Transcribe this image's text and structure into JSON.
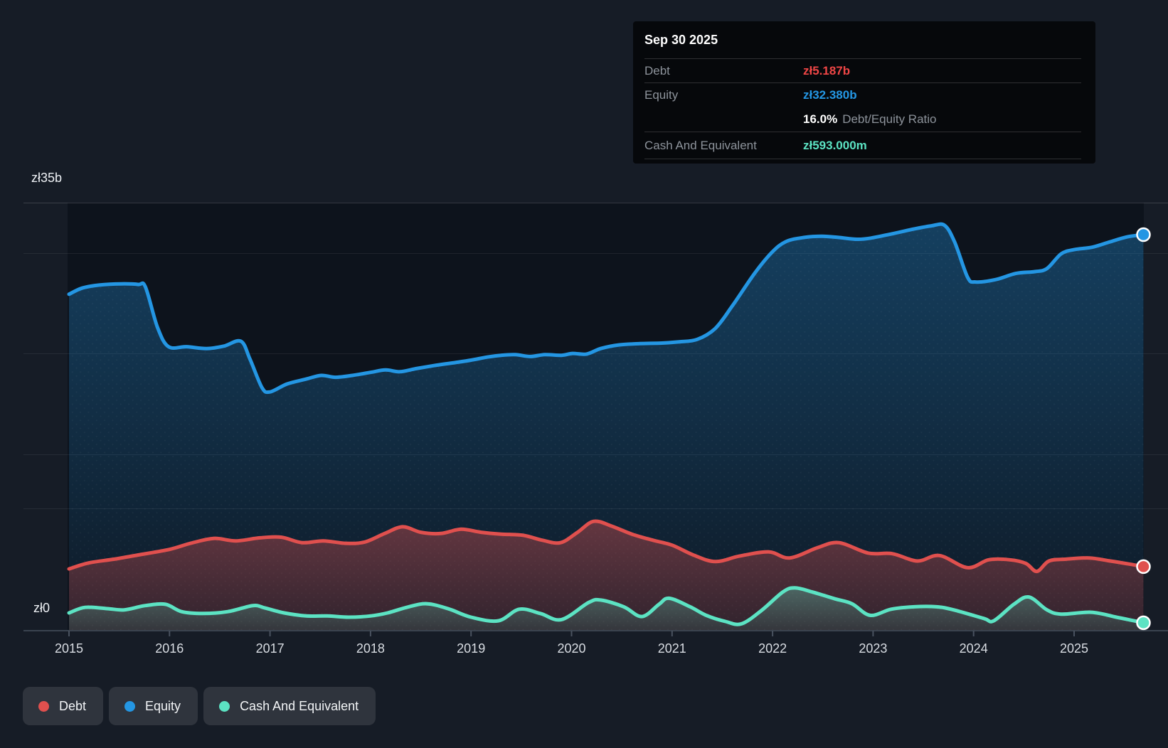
{
  "tooltip": {
    "date": "Sep 30 2025",
    "debt_label": "Debt",
    "debt_value": "zł5.187b",
    "equity_label": "Equity",
    "equity_value": "zł32.380b",
    "ratio_value": "16.0%",
    "ratio_label": "Debt/Equity Ratio",
    "cash_label": "Cash And Equivalent",
    "cash_value": "zł593.000m"
  },
  "axis": {
    "y_max_label": "zł35b",
    "y_zero_label": "zł0",
    "x_ticks": [
      "2015",
      "2016",
      "2017",
      "2018",
      "2019",
      "2020",
      "2021",
      "2022",
      "2023",
      "2024",
      "2025"
    ]
  },
  "legend": {
    "items": [
      {
        "label": "Debt",
        "color": "#e0504e"
      },
      {
        "label": "Equity",
        "color": "#2496e3"
      },
      {
        "label": "Cash And Equivalent",
        "color": "#5ce3c3"
      }
    ]
  },
  "colors": {
    "debt": "#e0504e",
    "equity": "#2496e3",
    "cash": "#5ce3c3",
    "background": "#161c26",
    "plot_background": "#0d131c"
  },
  "chart_data": {
    "type": "area",
    "currency": "zł",
    "value_unit": "billions",
    "ylim": [
      0,
      35
    ],
    "x_range": [
      2015,
      2025.75
    ],
    "gridlines": true,
    "legend_position": "bottom-left",
    "latest": {
      "date": "Sep 30 2025",
      "debt_b": 5.187,
      "equity_b": 32.38,
      "cash_b": 0.593,
      "debt_equity_ratio_pct": 16.0
    },
    "series": [
      {
        "key": "equity",
        "name": "Equity",
        "color": "#2496e3",
        "points": [
          [
            2015.0,
            27.5
          ],
          [
            2015.13,
            28.0
          ],
          [
            2015.3,
            28.25
          ],
          [
            2015.52,
            28.35
          ],
          [
            2015.69,
            28.3
          ],
          [
            2015.76,
            28.1
          ],
          [
            2015.88,
            24.8
          ],
          [
            2015.99,
            23.2
          ],
          [
            2016.17,
            23.2
          ],
          [
            2016.37,
            23.05
          ],
          [
            2016.54,
            23.25
          ],
          [
            2016.71,
            23.65
          ],
          [
            2016.8,
            22.2
          ],
          [
            2016.92,
            19.85
          ],
          [
            2017.0,
            19.5
          ],
          [
            2017.17,
            20.15
          ],
          [
            2017.36,
            20.55
          ],
          [
            2017.51,
            20.85
          ],
          [
            2017.65,
            20.7
          ],
          [
            2017.82,
            20.85
          ],
          [
            2018.0,
            21.1
          ],
          [
            2018.15,
            21.3
          ],
          [
            2018.29,
            21.15
          ],
          [
            2018.45,
            21.4
          ],
          [
            2018.63,
            21.65
          ],
          [
            2018.84,
            21.9
          ],
          [
            2019.0,
            22.1
          ],
          [
            2019.16,
            22.35
          ],
          [
            2019.3,
            22.5
          ],
          [
            2019.44,
            22.55
          ],
          [
            2019.59,
            22.4
          ],
          [
            2019.73,
            22.55
          ],
          [
            2019.9,
            22.5
          ],
          [
            2020.01,
            22.65
          ],
          [
            2020.15,
            22.6
          ],
          [
            2020.29,
            23.05
          ],
          [
            2020.47,
            23.35
          ],
          [
            2020.68,
            23.45
          ],
          [
            2020.9,
            23.5
          ],
          [
            2021.07,
            23.6
          ],
          [
            2021.25,
            23.8
          ],
          [
            2021.43,
            24.7
          ],
          [
            2021.6,
            26.55
          ],
          [
            2021.82,
            29.2
          ],
          [
            2021.99,
            30.9
          ],
          [
            2022.13,
            31.8
          ],
          [
            2022.31,
            32.15
          ],
          [
            2022.49,
            32.25
          ],
          [
            2022.66,
            32.15
          ],
          [
            2022.84,
            32.0
          ],
          [
            2022.98,
            32.1
          ],
          [
            2023.19,
            32.45
          ],
          [
            2023.41,
            32.85
          ],
          [
            2023.58,
            33.1
          ],
          [
            2023.71,
            33.15
          ],
          [
            2023.81,
            31.8
          ],
          [
            2023.94,
            28.9
          ],
          [
            2024.02,
            28.5
          ],
          [
            2024.22,
            28.7
          ],
          [
            2024.42,
            29.2
          ],
          [
            2024.61,
            29.35
          ],
          [
            2024.73,
            29.6
          ],
          [
            2024.87,
            30.8
          ],
          [
            2025.0,
            31.15
          ],
          [
            2025.18,
            31.35
          ],
          [
            2025.36,
            31.8
          ],
          [
            2025.53,
            32.2
          ],
          [
            2025.69,
            32.38
          ]
        ]
      },
      {
        "key": "debt",
        "name": "Debt",
        "color": "#e0504e",
        "points": [
          [
            2015.0,
            5.0
          ],
          [
            2015.2,
            5.5
          ],
          [
            2015.45,
            5.8
          ],
          [
            2015.73,
            6.2
          ],
          [
            2016.0,
            6.6
          ],
          [
            2016.21,
            7.1
          ],
          [
            2016.44,
            7.5
          ],
          [
            2016.66,
            7.3
          ],
          [
            2016.9,
            7.55
          ],
          [
            2017.11,
            7.6
          ],
          [
            2017.32,
            7.15
          ],
          [
            2017.53,
            7.3
          ],
          [
            2017.75,
            7.1
          ],
          [
            2017.94,
            7.2
          ],
          [
            2018.14,
            7.9
          ],
          [
            2018.32,
            8.45
          ],
          [
            2018.5,
            8.0
          ],
          [
            2018.7,
            7.9
          ],
          [
            2018.9,
            8.25
          ],
          [
            2019.1,
            8.0
          ],
          [
            2019.3,
            7.85
          ],
          [
            2019.52,
            7.75
          ],
          [
            2019.71,
            7.35
          ],
          [
            2019.89,
            7.15
          ],
          [
            2020.06,
            8.0
          ],
          [
            2020.22,
            8.9
          ],
          [
            2020.4,
            8.5
          ],
          [
            2020.6,
            7.85
          ],
          [
            2020.81,
            7.35
          ],
          [
            2021.0,
            6.95
          ],
          [
            2021.21,
            6.15
          ],
          [
            2021.43,
            5.6
          ],
          [
            2021.67,
            6.05
          ],
          [
            2021.96,
            6.4
          ],
          [
            2022.17,
            5.9
          ],
          [
            2022.45,
            6.75
          ],
          [
            2022.66,
            7.15
          ],
          [
            2022.95,
            6.3
          ],
          [
            2023.19,
            6.25
          ],
          [
            2023.44,
            5.65
          ],
          [
            2023.66,
            6.1
          ],
          [
            2023.94,
            5.1
          ],
          [
            2024.15,
            5.75
          ],
          [
            2024.36,
            5.75
          ],
          [
            2024.52,
            5.45
          ],
          [
            2024.63,
            4.8
          ],
          [
            2024.75,
            5.65
          ],
          [
            2024.92,
            5.8
          ],
          [
            2025.15,
            5.9
          ],
          [
            2025.36,
            5.65
          ],
          [
            2025.55,
            5.4
          ],
          [
            2025.69,
            5.187
          ]
        ]
      },
      {
        "key": "cash",
        "name": "Cash And Equivalent",
        "color": "#5ce3c3",
        "points": [
          [
            2015.0,
            1.4
          ],
          [
            2015.16,
            1.85
          ],
          [
            2015.38,
            1.75
          ],
          [
            2015.55,
            1.65
          ],
          [
            2015.76,
            2.0
          ],
          [
            2015.96,
            2.1
          ],
          [
            2016.12,
            1.5
          ],
          [
            2016.33,
            1.35
          ],
          [
            2016.58,
            1.5
          ],
          [
            2016.83,
            2.0
          ],
          [
            2016.95,
            1.8
          ],
          [
            2017.14,
            1.4
          ],
          [
            2017.36,
            1.15
          ],
          [
            2017.57,
            1.15
          ],
          [
            2017.78,
            1.05
          ],
          [
            2018.0,
            1.15
          ],
          [
            2018.17,
            1.4
          ],
          [
            2018.38,
            1.9
          ],
          [
            2018.56,
            2.15
          ],
          [
            2018.77,
            1.75
          ],
          [
            2019.0,
            1.05
          ],
          [
            2019.27,
            0.75
          ],
          [
            2019.48,
            1.7
          ],
          [
            2019.69,
            1.35
          ],
          [
            2019.9,
            0.85
          ],
          [
            2020.17,
            2.25
          ],
          [
            2020.29,
            2.45
          ],
          [
            2020.52,
            1.9
          ],
          [
            2020.7,
            1.1
          ],
          [
            2020.87,
            2.1
          ],
          [
            2020.97,
            2.6
          ],
          [
            2021.18,
            1.9
          ],
          [
            2021.34,
            1.2
          ],
          [
            2021.53,
            0.7
          ],
          [
            2021.69,
            0.5
          ],
          [
            2021.89,
            1.6
          ],
          [
            2022.1,
            3.1
          ],
          [
            2022.22,
            3.45
          ],
          [
            2022.4,
            3.1
          ],
          [
            2022.62,
            2.55
          ],
          [
            2022.79,
            2.15
          ],
          [
            2022.97,
            1.2
          ],
          [
            2023.18,
            1.7
          ],
          [
            2023.41,
            1.9
          ],
          [
            2023.63,
            1.9
          ],
          [
            2023.8,
            1.65
          ],
          [
            2024.1,
            0.95
          ],
          [
            2024.2,
            0.75
          ],
          [
            2024.4,
            2.1
          ],
          [
            2024.55,
            2.7
          ],
          [
            2024.73,
            1.65
          ],
          [
            2024.87,
            1.3
          ],
          [
            2025.17,
            1.45
          ],
          [
            2025.42,
            1.05
          ],
          [
            2025.57,
            0.8
          ],
          [
            2025.69,
            0.593
          ]
        ]
      }
    ]
  }
}
